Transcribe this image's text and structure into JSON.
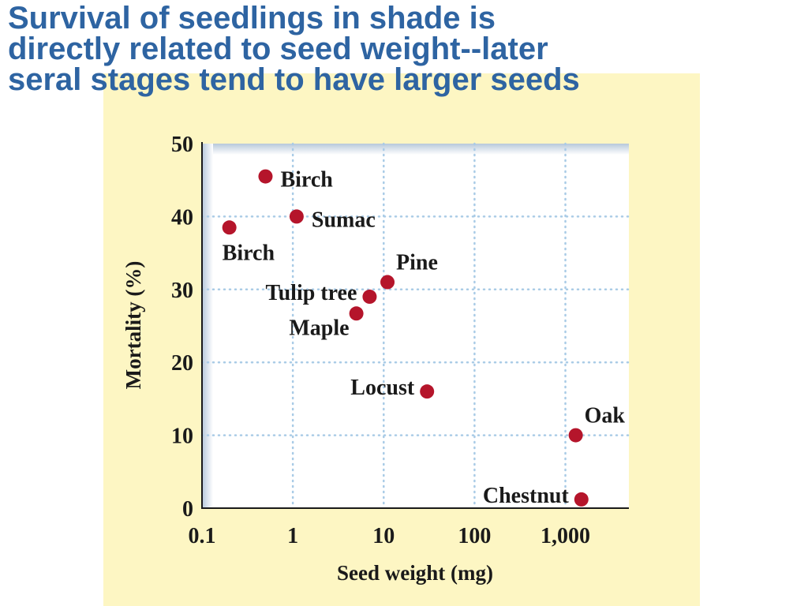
{
  "slide": {
    "title_lines": [
      "Survival of seedlings in shade is",
      "directly related to seed weight--later",
      "seral stages tend to have larger seeds"
    ],
    "title_color": "#2e64a2",
    "panel_color": "#fdf6c3"
  },
  "chart_data": {
    "type": "scatter",
    "xlabel": "Seed weight (mg)",
    "ylabel": "Mortality (%)",
    "x_scale": "log",
    "xlim": [
      0.1,
      5000
    ],
    "ylim": [
      0,
      50
    ],
    "x_ticks": [
      {
        "value": 0.1,
        "label": "0.1"
      },
      {
        "value": 1,
        "label": "1"
      },
      {
        "value": 10,
        "label": "10"
      },
      {
        "value": 100,
        "label": "100"
      },
      {
        "value": 1000,
        "label": "1,000"
      }
    ],
    "y_ticks": [
      {
        "value": 0,
        "label": "0"
      },
      {
        "value": 10,
        "label": "10"
      },
      {
        "value": 20,
        "label": "20"
      },
      {
        "value": 30,
        "label": "30"
      },
      {
        "value": 40,
        "label": "40"
      },
      {
        "value": 50,
        "label": "50"
      }
    ],
    "grid": true,
    "point_color": "#b5152b",
    "points": [
      {
        "label": "Birch",
        "x": 0.5,
        "y": 45.5,
        "label_pos": "right"
      },
      {
        "label": "Sumac",
        "x": 1.1,
        "y": 40,
        "label_pos": "right"
      },
      {
        "label": "Birch",
        "x": 0.2,
        "y": 38.5,
        "label_pos": "below"
      },
      {
        "label": "Pine",
        "x": 11,
        "y": 31,
        "label_pos": "above-right"
      },
      {
        "label": "Tulip tree",
        "x": 7,
        "y": 29,
        "label_pos": "left"
      },
      {
        "label": "Maple",
        "x": 5,
        "y": 26.7,
        "label_pos": "below-left"
      },
      {
        "label": "Locust",
        "x": 30,
        "y": 16,
        "label_pos": "left"
      },
      {
        "label": "Oak",
        "x": 1300,
        "y": 10,
        "label_pos": "above-right"
      },
      {
        "label": "Chestnut",
        "x": 1500,
        "y": 1.2,
        "label_pos": "left"
      }
    ]
  }
}
